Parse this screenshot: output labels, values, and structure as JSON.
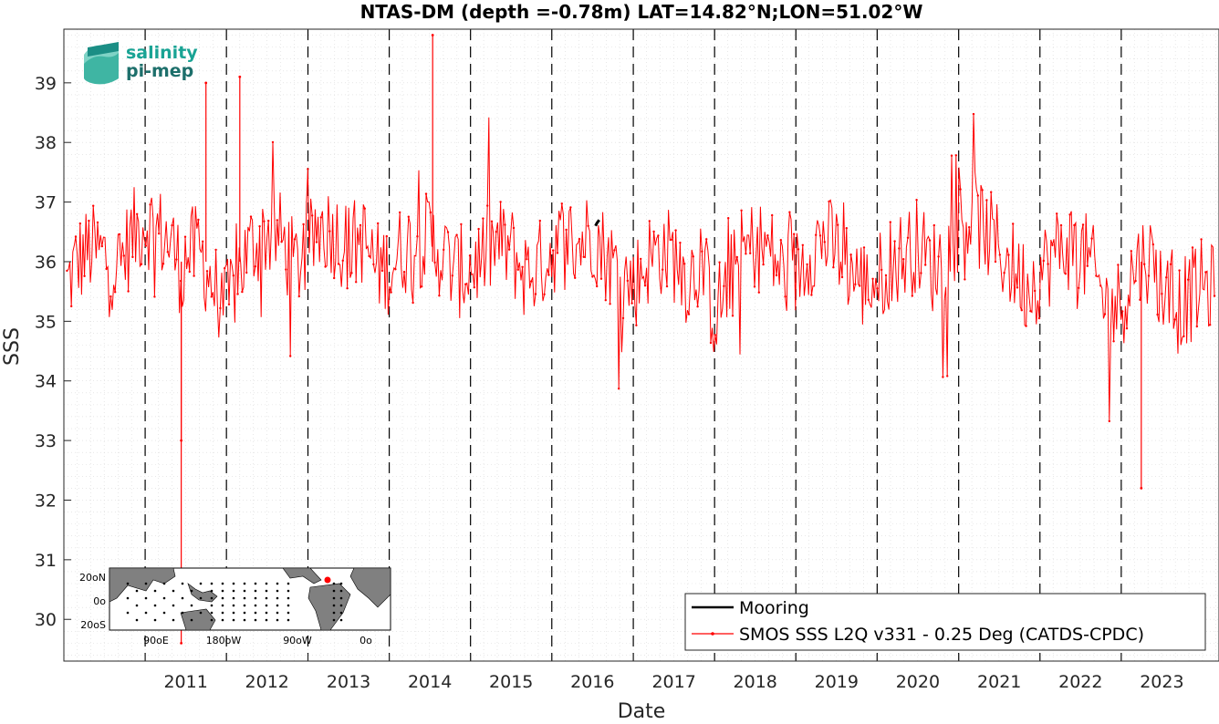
{
  "chart_data": {
    "type": "line",
    "title": "NTAS-DM (depth =-0.78m) LAT=14.82°N;LON=51.02°W",
    "xlabel": "Date",
    "ylabel": "SSS",
    "xlim": [
      "2010-01-01",
      "2024-03-15"
    ],
    "ylim": [
      29.3,
      39.9
    ],
    "x_ticks": [
      "2011",
      "2012",
      "2013",
      "2014",
      "2015",
      "2016",
      "2017",
      "2018",
      "2019",
      "2020",
      "2021",
      "2022",
      "2023"
    ],
    "x_tick_dates": [
      "2011-01-01",
      "2012-01-01",
      "2013-01-01",
      "2014-01-01",
      "2015-01-01",
      "2016-01-01",
      "2017-01-01",
      "2018-01-01",
      "2019-01-01",
      "2020-01-01",
      "2021-01-01",
      "2022-01-01",
      "2023-01-01"
    ],
    "y_ticks": [
      30,
      31,
      32,
      33,
      34,
      35,
      36,
      37,
      38,
      39
    ],
    "year_lines": [
      "2011-01-01",
      "2012-01-01",
      "2013-01-01",
      "2014-01-01",
      "2015-01-01",
      "2016-01-01",
      "2017-01-01",
      "2018-01-01",
      "2019-01-01",
      "2020-01-01",
      "2021-01-01",
      "2022-01-01",
      "2023-01-01"
    ],
    "grid": true,
    "legend_position": "bottom-right",
    "series": [
      {
        "name": "Mooring",
        "color": "#000000",
        "x": [
          "2016-07-15",
          "2016-07-22",
          "2016-08-01"
        ],
        "values": [
          36.6,
          36.65,
          36.7
        ]
      },
      {
        "name": "SMOS SSS L2Q v331 - 0.25 Deg (CATDS-CPDC)",
        "color": "#ff0000",
        "x": [
          "2010-01-15",
          "2010-03-01",
          "2010-05-01",
          "2010-07-01",
          "2010-09-01",
          "2010-11-01",
          "2011-01-01",
          "2011-03-01",
          "2011-05-01",
          "2011-06-15",
          "2011-07-01",
          "2011-09-01",
          "2011-11-01",
          "2012-01-01",
          "2012-03-01",
          "2012-05-01",
          "2012-07-01",
          "2012-09-01",
          "2012-11-01",
          "2013-01-01",
          "2013-03-01",
          "2013-05-01",
          "2013-07-01",
          "2013-09-01",
          "2013-11-01",
          "2014-01-01",
          "2014-03-01",
          "2014-05-01",
          "2014-07-01",
          "2014-09-01",
          "2014-11-01",
          "2015-01-01",
          "2015-03-01",
          "2015-05-01",
          "2015-07-01",
          "2015-09-01",
          "2015-11-01",
          "2016-01-01",
          "2016-03-01",
          "2016-05-01",
          "2016-07-01",
          "2016-09-01",
          "2016-11-01",
          "2017-01-01",
          "2017-03-01",
          "2017-05-01",
          "2017-07-01",
          "2017-09-01",
          "2017-11-01",
          "2018-01-01",
          "2018-03-01",
          "2018-05-01",
          "2018-07-01",
          "2018-09-01",
          "2018-11-01",
          "2019-01-01",
          "2019-03-01",
          "2019-05-01",
          "2019-07-01",
          "2019-09-01",
          "2019-11-01",
          "2020-01-01",
          "2020-03-01",
          "2020-05-01",
          "2020-07-01",
          "2020-09-01",
          "2020-11-01",
          "2021-01-01",
          "2021-03-01",
          "2021-05-01",
          "2021-07-01",
          "2021-09-01",
          "2021-11-01",
          "2022-01-01",
          "2022-03-01",
          "2022-05-01",
          "2022-07-01",
          "2022-09-01",
          "2022-11-01",
          "2023-01-01",
          "2023-03-01",
          "2023-05-01",
          "2023-07-01",
          "2023-09-01",
          "2023-11-01",
          "2024-01-01",
          "2024-03-01"
        ],
        "values": [
          35.6,
          36.0,
          36.2,
          36.1,
          35.9,
          36.4,
          36.7,
          36.5,
          36.3,
          35.8,
          36.1,
          36.2,
          35.6,
          35.2,
          35.9,
          36.3,
          36.5,
          36.4,
          35.9,
          36.2,
          36.6,
          36.5,
          36.2,
          36.4,
          35.9,
          35.9,
          36.2,
          36.3,
          36.4,
          36.1,
          35.8,
          35.9,
          36.1,
          36.3,
          36.2,
          35.8,
          35.9,
          36.2,
          36.4,
          36.3,
          36.5,
          36.1,
          35.8,
          35.6,
          36.0,
          36.2,
          36.1,
          35.7,
          36.0,
          35.1,
          35.6,
          36.1,
          36.3,
          36.2,
          35.8,
          35.8,
          36.2,
          36.4,
          36.2,
          35.9,
          35.6,
          35.7,
          36.0,
          36.1,
          36.3,
          35.9,
          36.1,
          36.6,
          36.8,
          36.5,
          36.2,
          35.9,
          35.6,
          35.8,
          36.1,
          36.3,
          36.2,
          35.8,
          35.2,
          35.3,
          35.9,
          36.1,
          35.6,
          35.2,
          35.4,
          35.6,
          35.5
        ],
        "spikes": [
          {
            "x": "2011-06-12",
            "values": [
              29.6,
              33.0
            ]
          },
          {
            "x": "2011-10-01",
            "values": [
              39.0
            ]
          },
          {
            "x": "2012-03-01",
            "values": [
              39.1
            ]
          },
          {
            "x": "2014-07-15",
            "values": [
              39.8
            ]
          },
          {
            "x": "2023-04-01",
            "values": [
              32.2
            ]
          }
        ],
        "marker": "dot"
      }
    ]
  },
  "logo": {
    "line1": "salinity",
    "line2": "pi-mep"
  },
  "inset_map": {
    "lat_labels": [
      "20oN",
      "0o",
      "20oS"
    ],
    "lon_labels": [
      "90oE",
      "180oW",
      "90oW",
      "0o"
    ]
  },
  "legend": {
    "items": [
      {
        "label": "Mooring",
        "color": "#000000"
      },
      {
        "label": "SMOS SSS L2Q v331 - 0.25 Deg (CATDS-CPDC)",
        "color": "#ff0000"
      }
    ]
  }
}
